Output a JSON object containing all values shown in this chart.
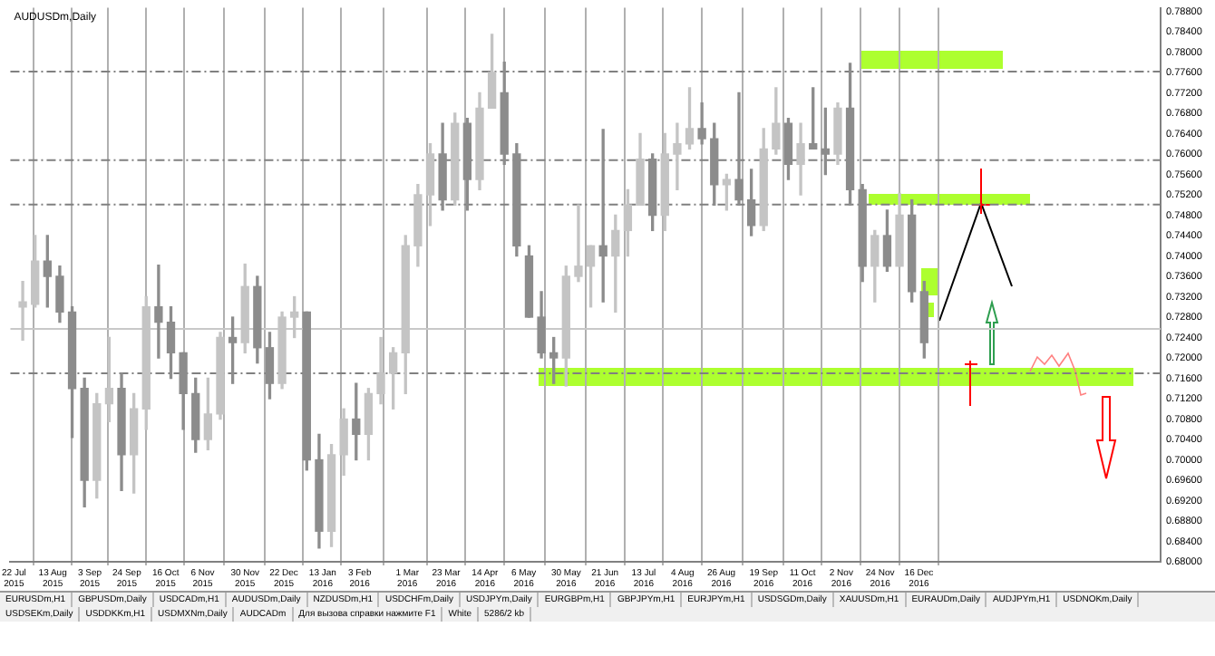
{
  "chart_data": {
    "type": "candlestick",
    "title": "AUDUSDm,Daily",
    "colors": [
      "#c4c4c4",
      "#c4c4c4",
      "#8c8c8c",
      "#8c8c8c",
      "#8c8c8c",
      "#8c8c8c",
      "#c4c4c4",
      "#c4c4c4",
      "#8c8c8c",
      "#c4c4c4",
      "#c4c4c4",
      "#8c8c8c",
      "#8c8c8c",
      "#8c8c8c",
      "#8c8c8c",
      "#c4c4c4",
      "#c4c4c4",
      "#8c8c8c",
      "#c4c4c4",
      "#8c8c8c",
      "#8c8c8c",
      "#c4c4c4",
      "#c4c4c4",
      "#8c8c8c",
      "#8c8c8c",
      "#c4c4c4",
      "#c4c4c4",
      "#8c8c8c",
      "#c4c4c4",
      "#c4c4c4",
      "#c4c4c4",
      "#c4c4c4",
      "#c4c4c4",
      "#c4c4c4",
      "#8c8c8c",
      "#c4c4c4",
      "#8c8c8c",
      "#c4c4c4",
      "#c4c4c4",
      "#8c8c8c",
      "#8c8c8c",
      "#8c8c8c",
      "#8c8c8c",
      "#8c8c8c",
      "#c4c4c4",
      "#c4c4c4",
      "#c4c4c4",
      "#8c8c8c",
      "#c4c4c4",
      "#c4c4c4",
      "#c4c4c4",
      "#8c8c8c",
      "#c4c4c4",
      "#c4c4c4",
      "#c4c4c4",
      "#8c8c8c",
      "#8c8c8c",
      "#c4c4c4",
      "#8c8c8c",
      "#8c8c8c",
      "#c4c4c4",
      "#c4c4c4",
      "#8c8c8c",
      "#c4c4c4",
      "#8c8c8c",
      "#8c8c8c",
      "#c4c4c4",
      "#8c8c8c",
      "#8c8c8c",
      "#c4c4c4",
      "#8c8c8c",
      "#c4c4c4",
      "#8c8c8c",
      "#8c8c8c"
    ],
    "grid": "x",
    "x": [
      "2015-07-27",
      "2015-08-03",
      "2015-08-10",
      "2015-08-17",
      "2015-08-24",
      "2015-08-31",
      "2015-09-07",
      "2015-09-14",
      "2015-09-21",
      "2015-09-28",
      "2015-10-05",
      "2015-10-12",
      "2015-10-19",
      "2015-10-26",
      "2015-11-02",
      "2015-11-09",
      "2015-11-16",
      "2015-11-23",
      "2015-11-30",
      "2015-12-07",
      "2015-12-14",
      "2015-12-21",
      "2015-12-28",
      "2016-01-04",
      "2016-01-11",
      "2016-01-18",
      "2016-01-25",
      "2016-02-01",
      "2016-02-08",
      "2016-02-15",
      "2016-02-22",
      "2016-02-29",
      "2016-03-07",
      "2016-03-14",
      "2016-03-21",
      "2016-03-28",
      "2016-04-04",
      "2016-04-11",
      "2016-04-18",
      "2016-04-25",
      "2016-05-02",
      "2016-05-09",
      "2016-05-16",
      "2016-05-23",
      "2016-05-30",
      "2016-06-06",
      "2016-06-13",
      "2016-06-20",
      "2016-06-27",
      "2016-07-04",
      "2016-07-11",
      "2016-07-18",
      "2016-07-25",
      "2016-08-01",
      "2016-08-08",
      "2016-08-15",
      "2016-08-22",
      "2016-08-29",
      "2016-09-05",
      "2016-09-12",
      "2016-09-19",
      "2016-09-26",
      "2016-10-03",
      "2016-10-10",
      "2016-10-17",
      "2016-10-24",
      "2016-10-31",
      "2016-11-07",
      "2016-11-14",
      "2016-11-21",
      "2016-11-28",
      "2016-12-05",
      "2016-12-12",
      "2016-12-19"
    ],
    "ohlc": [
      [
        0.73,
        0.735,
        0.7235,
        0.731
      ],
      [
        0.7305,
        0.744,
        0.73,
        0.739
      ],
      [
        0.739,
        0.744,
        0.73,
        0.736
      ],
      [
        0.736,
        0.738,
        0.727,
        0.729
      ],
      [
        0.729,
        0.73,
        0.7044,
        0.714
      ],
      [
        0.714,
        0.716,
        0.6908,
        0.696
      ],
      [
        0.696,
        0.713,
        0.6925,
        0.711
      ],
      [
        0.711,
        0.724,
        0.7075,
        0.714
      ],
      [
        0.714,
        0.717,
        0.694,
        0.701
      ],
      [
        0.701,
        0.713,
        0.6935,
        0.71
      ],
      [
        0.71,
        0.732,
        0.706,
        0.73
      ],
      [
        0.73,
        0.7382,
        0.72,
        0.727
      ],
      [
        0.727,
        0.73,
        0.716,
        0.721
      ],
      [
        0.721,
        0.721,
        0.706,
        0.713
      ],
      [
        0.713,
        0.716,
        0.7015,
        0.704
      ],
      [
        0.704,
        0.716,
        0.702,
        0.709
      ],
      [
        0.709,
        0.725,
        0.708,
        0.724
      ],
      [
        0.724,
        0.728,
        0.715,
        0.723
      ],
      [
        0.723,
        0.7384,
        0.721,
        0.734
      ],
      [
        0.734,
        0.736,
        0.719,
        0.722
      ],
      [
        0.722,
        0.725,
        0.712,
        0.715
      ],
      [
        0.715,
        0.729,
        0.714,
        0.728
      ],
      [
        0.728,
        0.732,
        0.724,
        0.729
      ],
      [
        0.729,
        0.729,
        0.698,
        0.7
      ],
      [
        0.7,
        0.705,
        0.6827,
        0.686
      ],
      [
        0.686,
        0.703,
        0.683,
        0.701
      ],
      [
        0.701,
        0.71,
        0.697,
        0.708
      ],
      [
        0.708,
        0.715,
        0.7,
        0.705
      ],
      [
        0.705,
        0.714,
        0.7,
        0.713
      ],
      [
        0.713,
        0.724,
        0.711,
        0.717
      ],
      [
        0.717,
        0.722,
        0.71,
        0.721
      ],
      [
        0.721,
        0.744,
        0.713,
        0.742
      ],
      [
        0.742,
        0.754,
        0.738,
        0.752
      ],
      [
        0.752,
        0.762,
        0.746,
        0.76
      ],
      [
        0.76,
        0.766,
        0.749,
        0.751
      ],
      [
        0.751,
        0.768,
        0.75,
        0.766
      ],
      [
        0.766,
        0.767,
        0.749,
        0.755
      ],
      [
        0.755,
        0.772,
        0.753,
        0.769
      ],
      [
        0.769,
        0.7835,
        0.769,
        0.776
      ],
      [
        0.772,
        0.778,
        0.758,
        0.76
      ],
      [
        0.76,
        0.762,
        0.74,
        0.742
      ],
      [
        0.74,
        0.742,
        0.728,
        0.728
      ],
      [
        0.728,
        0.733,
        0.72,
        0.721
      ],
      [
        0.721,
        0.724,
        0.715,
        0.72
      ],
      [
        0.72,
        0.738,
        0.7145,
        0.736
      ],
      [
        0.736,
        0.75,
        0.735,
        0.738
      ],
      [
        0.738,
        0.742,
        0.73,
        0.742
      ],
      [
        0.742,
        0.7648,
        0.731,
        0.74
      ],
      [
        0.74,
        0.748,
        0.729,
        0.745
      ],
      [
        0.745,
        0.753,
        0.74,
        0.75
      ],
      [
        0.75,
        0.764,
        0.75,
        0.759
      ],
      [
        0.759,
        0.76,
        0.745,
        0.748
      ],
      [
        0.748,
        0.764,
        0.745,
        0.76
      ],
      [
        0.76,
        0.766,
        0.753,
        0.762
      ],
      [
        0.762,
        0.773,
        0.761,
        0.765
      ],
      [
        0.765,
        0.77,
        0.762,
        0.763
      ],
      [
        0.763,
        0.766,
        0.75,
        0.754
      ],
      [
        0.754,
        0.756,
        0.749,
        0.755
      ],
      [
        0.755,
        0.772,
        0.75,
        0.751
      ],
      [
        0.751,
        0.757,
        0.744,
        0.746
      ],
      [
        0.746,
        0.765,
        0.745,
        0.761
      ],
      [
        0.761,
        0.773,
        0.76,
        0.766
      ],
      [
        0.766,
        0.767,
        0.755,
        0.758
      ],
      [
        0.758,
        0.766,
        0.752,
        0.762
      ],
      [
        0.762,
        0.773,
        0.761,
        0.761
      ],
      [
        0.761,
        0.769,
        0.756,
        0.76
      ],
      [
        0.76,
        0.77,
        0.758,
        0.769
      ],
      [
        0.769,
        0.7778,
        0.75,
        0.753
      ],
      [
        0.753,
        0.754,
        0.735,
        0.738
      ],
      [
        0.738,
        0.745,
        0.731,
        0.744
      ],
      [
        0.744,
        0.749,
        0.737,
        0.738
      ],
      [
        0.738,
        0.7523,
        0.738,
        0.748
      ],
      [
        0.748,
        0.751,
        0.731,
        0.733
      ],
      [
        0.733,
        0.735,
        0.72,
        0.723
      ]
    ],
    "xlim": [
      "2015-07-20",
      "2017-05-02"
    ],
    "xticks": [
      {
        "value": "2015-07-22",
        "label": "22 Jul 2015"
      },
      {
        "value": "2015-08-13",
        "label": "13 Aug 2015"
      },
      {
        "value": "2015-09-03",
        "label": "3 Sep 2015"
      },
      {
        "value": "2015-09-24",
        "label": "24 Sep 2015"
      },
      {
        "value": "2015-10-16",
        "label": "16 Oct 2015"
      },
      {
        "value": "2015-11-06",
        "label": "6 Nov 2015"
      },
      {
        "value": "2015-11-30",
        "label": "30 Nov 2015"
      },
      {
        "value": "2015-12-22",
        "label": "22 Dec 2015"
      },
      {
        "value": "2016-01-13",
        "label": "13 Jan 2016"
      },
      {
        "value": "2016-02-03",
        "label": "3 Feb 2016"
      },
      {
        "value": "2016-03-01",
        "label": "1 Mar 2016"
      },
      {
        "value": "2016-03-23",
        "label": "23 Mar 2016"
      },
      {
        "value": "2016-04-14",
        "label": "14 Apr 2016"
      },
      {
        "value": "2016-05-06",
        "label": "6 May 2016"
      },
      {
        "value": "2016-05-30",
        "label": "30 May 2016"
      },
      {
        "value": "2016-06-21",
        "label": "21 Jun 2016"
      },
      {
        "value": "2016-07-13",
        "label": "13 Jul 2016"
      },
      {
        "value": "2016-08-04",
        "label": "4 Aug 2016"
      },
      {
        "value": "2016-08-26",
        "label": "26 Aug 2016"
      },
      {
        "value": "2016-09-19",
        "label": "19 Sep 2016"
      },
      {
        "value": "2016-10-11",
        "label": "11 Oct 2016"
      },
      {
        "value": "2016-11-02",
        "label": "2 Nov 2016"
      },
      {
        "value": "2016-11-24",
        "label": "24 Nov 2016"
      },
      {
        "value": "2016-12-16",
        "label": "16 Dec 2016"
      }
    ],
    "ylim": [
      0.68,
      0.7887
    ],
    "yticks": [
      {
        "value": 0.68,
        "label": "0.68000"
      },
      {
        "value": 0.684,
        "label": "0.68400"
      },
      {
        "value": 0.688,
        "label": "0.68800"
      },
      {
        "value": 0.692,
        "label": "0.69200"
      },
      {
        "value": 0.696,
        "label": "0.69600"
      },
      {
        "value": 0.7,
        "label": "0.70000"
      },
      {
        "value": 0.704,
        "label": "0.70400"
      },
      {
        "value": 0.708,
        "label": "0.70800"
      },
      {
        "value": 0.712,
        "label": "0.71200"
      },
      {
        "value": 0.716,
        "label": "0.71600"
      },
      {
        "value": 0.72,
        "label": "0.72000"
      },
      {
        "value": 0.724,
        "label": "0.72400"
      },
      {
        "value": 0.728,
        "label": "0.72800"
      },
      {
        "value": 0.732,
        "label": "0.73200"
      },
      {
        "value": 0.736,
        "label": "0.73600"
      },
      {
        "value": 0.74,
        "label": "0.74000"
      },
      {
        "value": 0.744,
        "label": "0.74400"
      },
      {
        "value": 0.748,
        "label": "0.74800"
      },
      {
        "value": 0.752,
        "label": "0.75200"
      },
      {
        "value": 0.756,
        "label": "0.75600"
      },
      {
        "value": 0.76,
        "label": "0.76000"
      },
      {
        "value": 0.764,
        "label": "0.76400"
      },
      {
        "value": 0.768,
        "label": "0.76800"
      },
      {
        "value": 0.772,
        "label": "0.77200"
      },
      {
        "value": 0.776,
        "label": "0.77600"
      },
      {
        "value": 0.78,
        "label": "0.78000"
      },
      {
        "value": 0.784,
        "label": "0.78400"
      },
      {
        "value": 0.788,
        "label": "0.78800"
      }
    ],
    "ref_lines": [
      {
        "axis": "y",
        "value": 0.7762,
        "color": "#808080",
        "line_style": "dashed"
      },
      {
        "axis": "y",
        "value": 0.7588,
        "color": "#808080",
        "line_style": "dashed"
      },
      {
        "axis": "y",
        "value": 0.7501,
        "color": "#808080",
        "line_style": "dashed"
      },
      {
        "axis": "y",
        "value": 0.7257,
        "color": "#c8c8c8",
        "line_style": "solid"
      },
      {
        "axis": "y",
        "value": 0.717,
        "color": "#808080",
        "line_style": "dashed"
      }
    ],
    "legend": false,
    "annotations": [
      "EURUSDm,H1",
      "GBPUSDm,Daily",
      "USDCADm,H1",
      "AUDUSDm,Daily",
      "NZDUSDm,H1",
      "USDCHFm,Daily",
      "USDJPYm,Daily",
      "EURGBPm,H1",
      "GBPJPYm,H1",
      "EURJPYm,H1",
      "USDSGDm,Daily",
      "XAUUSDm,H1",
      "EURAUDm,Daily",
      "AUDJPYm,H1",
      "USDNOKm,Daily",
      "USDSEKm,Daily",
      "USDDKKm,H1",
      "USDMXNm,Daily",
      "AUDCADm",
      "Для вызова справки нажмите F1",
      "White",
      "5286/2 kb"
    ]
  }
}
